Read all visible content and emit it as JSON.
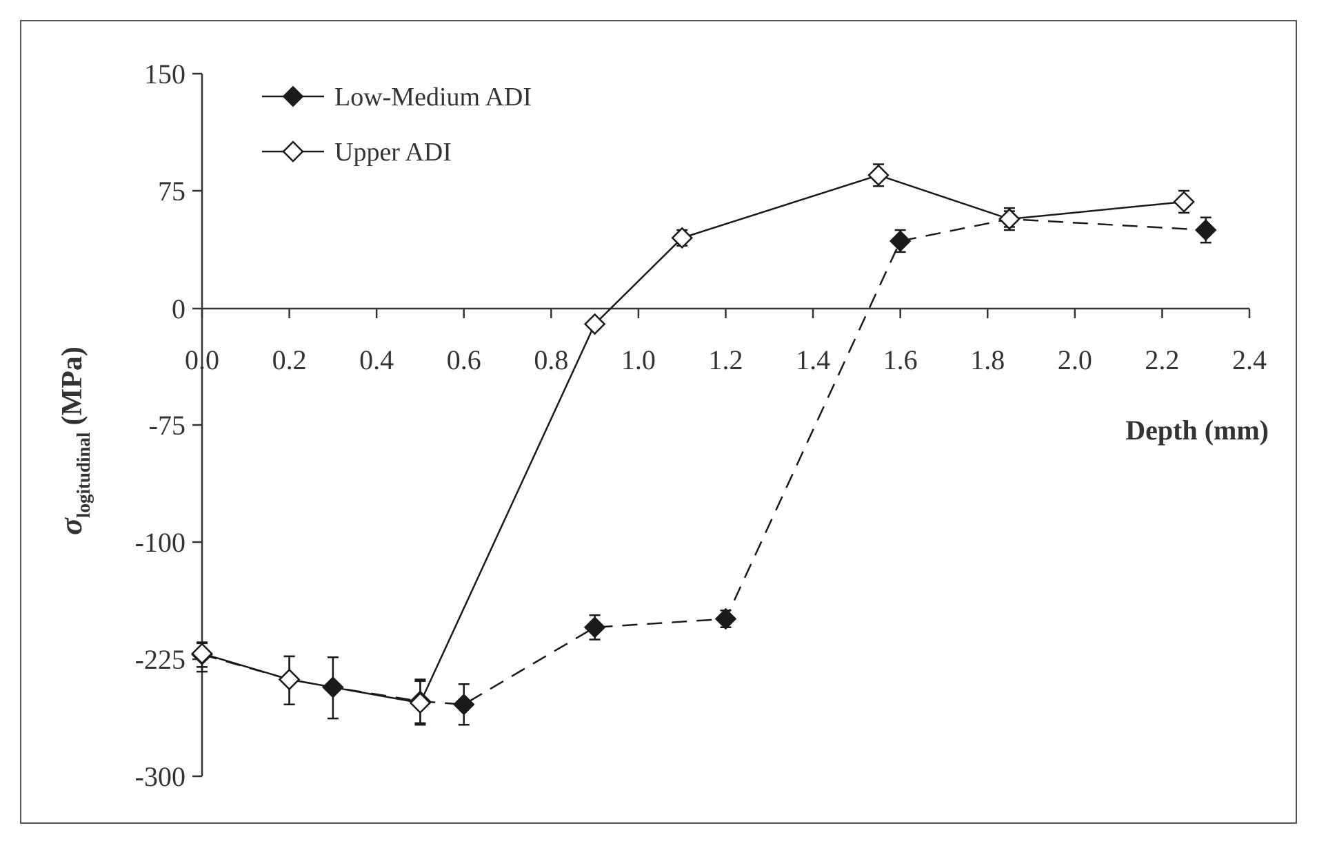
{
  "chart_data": {
    "type": "line",
    "xlabel": "Depth (mm)",
    "ylabel_symbol": "σ",
    "ylabel_subscript": "logitudinal",
    "ylabel_unit": "(MPa)",
    "x_ticks": [
      "0.0",
      "0.2",
      "0.4",
      "0.6",
      "0.8",
      "1.0",
      "1.2",
      "1.4",
      "1.6",
      "1.8",
      "2.0",
      "2.2",
      "2.4"
    ],
    "y_ticks": [
      "150",
      "75",
      "0",
      "-75",
      "-100",
      "-225",
      "-300"
    ],
    "xlim": [
      0,
      2.4
    ],
    "ylim": [
      -300,
      150
    ],
    "grid": false,
    "legend_position": "top-left",
    "series": [
      {
        "name": "Low-Medium ADI",
        "marker": "filled-diamond",
        "line_style": "dashed",
        "color": "#1a1a1a",
        "x": [
          0.0,
          0.2,
          0.3,
          0.5,
          0.6,
          0.9,
          1.2,
          1.6,
          1.85,
          2.3
        ],
        "y": [
          -220,
          -238,
          -243,
          -252,
          -254,
          -191,
          -182,
          43,
          57,
          50
        ],
        "error": [
          13,
          16,
          20,
          14,
          13,
          13,
          9,
          7,
          7,
          8
        ]
      },
      {
        "name": "Upper ADI",
        "marker": "open-diamond",
        "line_style": "solid",
        "color": "#1a1a1a",
        "x": [
          0.0,
          0.2,
          0.5,
          0.9,
          1.1,
          1.55,
          1.85,
          2.25
        ],
        "y": [
          -219,
          -238,
          -253,
          -10,
          45,
          85,
          57,
          68
        ],
        "error": [
          11,
          16,
          14,
          3,
          5,
          7,
          5,
          7
        ]
      }
    ]
  }
}
